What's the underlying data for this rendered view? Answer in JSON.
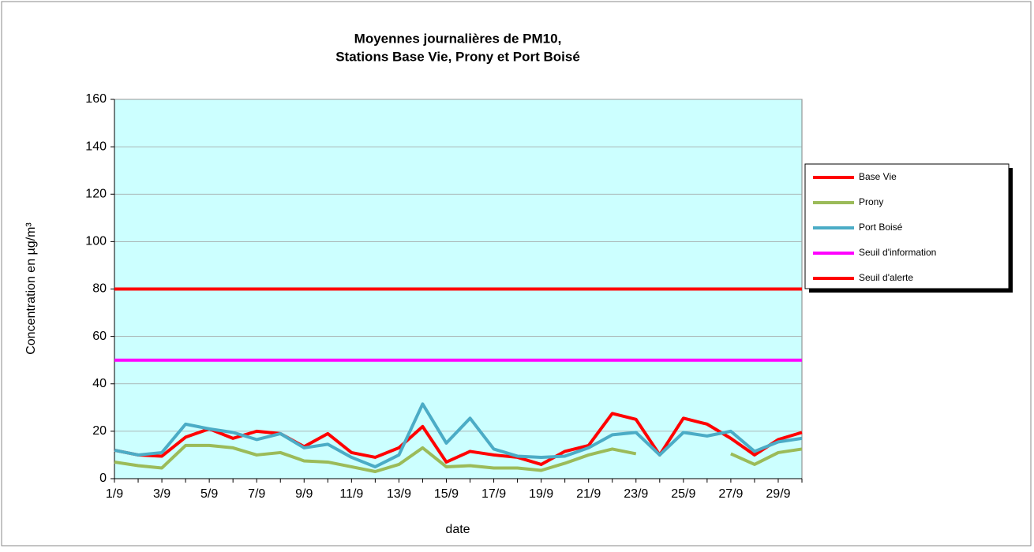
{
  "chart_data": {
    "type": "line",
    "title": [
      "Moyennes journalières de PM10,",
      "Stations Base Vie, Prony et Port Boisé"
    ],
    "x_label": "date",
    "y_label": "Concentration en µg/m³",
    "categories": [
      "1/9",
      null,
      "3/9",
      null,
      "5/9",
      null,
      "7/9",
      null,
      "9/9",
      null,
      "11/9",
      null,
      "13/9",
      null,
      "15/9",
      null,
      "17/9",
      null,
      "19/9",
      null,
      "21/9",
      null,
      "23/9",
      null,
      "25/9",
      null,
      "27/9",
      null,
      "29/9",
      null
    ],
    "series": [
      {
        "name": "Base Vie",
        "color": "#ff0000",
        "values": [
          12,
          10,
          9.5,
          17.5,
          21,
          17,
          20,
          19,
          13.5,
          19,
          11,
          9,
          13,
          22,
          7,
          11.5,
          10,
          9,
          6,
          11.5,
          14,
          27.5,
          25,
          10,
          25.5,
          23,
          17,
          10,
          16.5,
          19.5
        ]
      },
      {
        "name": "Prony",
        "color": "#9bbb59",
        "values": [
          7,
          5.5,
          4.5,
          14,
          14,
          13,
          10,
          11,
          7.5,
          7,
          5,
          3,
          6,
          13,
          5,
          5.5,
          4.5,
          4.5,
          3.5,
          6.5,
          10,
          12.5,
          10.5,
          null,
          null,
          null,
          10.5,
          6,
          11,
          12.5
        ]
      },
      {
        "name": "Port Boisé",
        "color": "#4bacc6",
        "values": [
          12,
          10,
          11,
          23,
          21,
          19.5,
          16.5,
          19,
          13,
          14.5,
          9,
          5,
          10,
          31.5,
          15,
          25.5,
          12.5,
          9.5,
          9,
          9.5,
          13,
          18.5,
          19.5,
          10,
          19.5,
          18,
          20,
          11.5,
          15.5,
          17
        ]
      },
      {
        "name": "Seuil d'information",
        "color": "#ff00ff",
        "values": [
          50,
          50,
          50,
          50,
          50,
          50,
          50,
          50,
          50,
          50,
          50,
          50,
          50,
          50,
          50,
          50,
          50,
          50,
          50,
          50,
          50,
          50,
          50,
          50,
          50,
          50,
          50,
          50,
          50,
          50
        ]
      },
      {
        "name": "Seuil d'alerte",
        "color": "#ff0000",
        "values": [
          80,
          80,
          80,
          80,
          80,
          80,
          80,
          80,
          80,
          80,
          80,
          80,
          80,
          80,
          80,
          80,
          80,
          80,
          80,
          80,
          80,
          80,
          80,
          80,
          80,
          80,
          80,
          80,
          80,
          80
        ]
      }
    ],
    "ylim": [
      0,
      160
    ],
    "yticks": [
      0,
      20,
      40,
      60,
      80,
      100,
      120,
      140,
      160
    ],
    "grid": true,
    "legend": "right",
    "plot_background": "#ccffff"
  }
}
